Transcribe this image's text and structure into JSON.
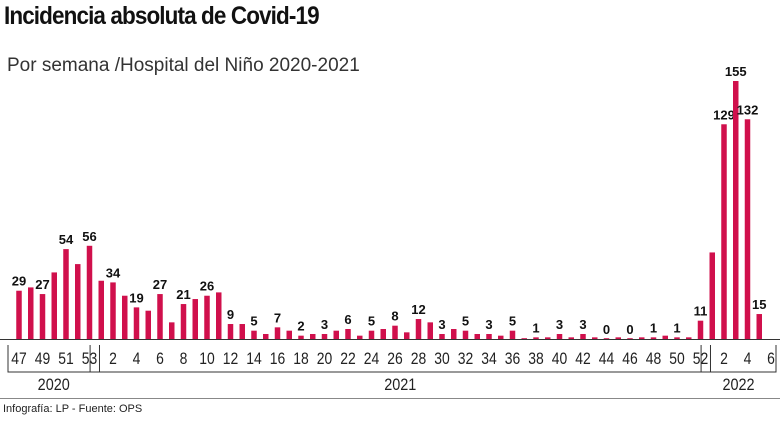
{
  "title": "Incidencia absoluta de Covid-19",
  "subtitle": "Por semana /Hospital del Niño 2020-2021",
  "footer": "Infografía: LP - Fuente: OPS",
  "chart_data": {
    "type": "bar",
    "bar_color": "#d0104c",
    "xlabel": "",
    "ylabel": "",
    "ylim": [
      0,
      160
    ],
    "grid": false,
    "groups": [
      {
        "year": "2020",
        "weeks": [
          47,
          48,
          49,
          50,
          51,
          52,
          53
        ],
        "values": [
          29,
          31,
          27,
          40,
          54,
          45,
          56
        ],
        "data_labels": [
          "29",
          null,
          "27",
          null,
          "54",
          null,
          "56"
        ],
        "tick_labels": [
          "47",
          "49",
          "51",
          "53"
        ],
        "tick_weeks": [
          47,
          49,
          51,
          53
        ]
      },
      {
        "year": "2021",
        "weeks": [
          1,
          2,
          3,
          4,
          5,
          6,
          7,
          8,
          9,
          10,
          11,
          12,
          13,
          14,
          15,
          16,
          17,
          18,
          19,
          20,
          21,
          22,
          23,
          24,
          25,
          26,
          27,
          28,
          29,
          30,
          31,
          32,
          33,
          34,
          35,
          36,
          37,
          38,
          39,
          40,
          41,
          42,
          43,
          44,
          45,
          46,
          47,
          48,
          49,
          50,
          51,
          52
        ],
        "values": [
          35,
          34,
          26,
          19,
          17,
          27,
          10,
          21,
          24,
          26,
          28,
          9,
          9,
          5,
          3,
          7,
          5,
          2,
          3,
          3,
          5,
          6,
          2,
          5,
          6,
          8,
          4,
          12,
          10,
          3,
          6,
          5,
          3,
          3,
          2,
          5,
          0,
          1,
          1,
          3,
          1,
          3,
          1,
          0,
          1,
          0,
          1,
          1,
          2,
          1,
          1,
          11
        ],
        "data_labels": [
          null,
          "34",
          null,
          "19",
          null,
          "27",
          null,
          "21",
          null,
          "26",
          null,
          "9",
          null,
          "5",
          null,
          "7",
          null,
          "2",
          null,
          "3",
          null,
          "6",
          null,
          "5",
          null,
          "8",
          null,
          "12",
          null,
          "3",
          null,
          "5",
          null,
          "3",
          null,
          "5",
          null,
          "1",
          null,
          "3",
          null,
          "3",
          null,
          "0",
          null,
          "0",
          null,
          "1",
          null,
          "1",
          null,
          "11"
        ],
        "tick_labels": [
          "2",
          "4",
          "6",
          "8",
          "10",
          "12",
          "14",
          "16",
          "18",
          "20",
          "22",
          "24",
          "26",
          "28",
          "30",
          "32",
          "34",
          "36",
          "38",
          "40",
          "42",
          "44",
          "46",
          "48",
          "50",
          "52"
        ],
        "tick_weeks": [
          2,
          4,
          6,
          8,
          10,
          12,
          14,
          16,
          18,
          20,
          22,
          24,
          26,
          28,
          30,
          32,
          34,
          36,
          38,
          40,
          42,
          44,
          46,
          48,
          50,
          52
        ]
      },
      {
        "year": "2022",
        "weeks": [
          1,
          2,
          3,
          4,
          5
        ],
        "values": [
          52,
          129,
          155,
          132,
          15
        ],
        "data_labels": [
          null,
          "129",
          "155",
          "132",
          "15"
        ],
        "tick_labels": [
          "2",
          "4",
          "6"
        ],
        "tick_weeks": [
          2,
          4,
          6
        ]
      }
    ]
  }
}
